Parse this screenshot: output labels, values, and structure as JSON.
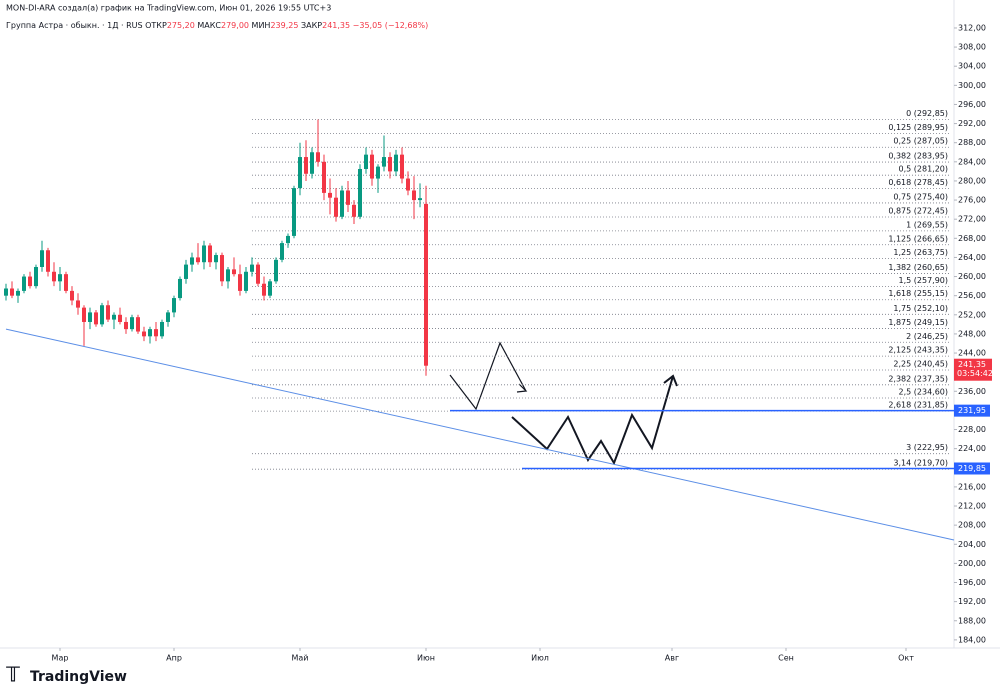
{
  "header": {
    "author_line": "MON-DI-ARA создал(а) график на TradingView.com, Июн 01, 2026 19:55 UTC+3",
    "symbol": "Группа Астра · обыкн. · 1Д · RUS",
    "ohlc": [
      {
        "label": "ОТКР",
        "value": "275,20"
      },
      {
        "label": "МАКС",
        "value": "279,00"
      },
      {
        "label": "МИН",
        "value": "239,25"
      },
      {
        "label": "ЗАКР",
        "value": "241,35"
      }
    ],
    "change": "−35,05 (−12,68%)"
  },
  "footer": {
    "logo": "TradingView"
  },
  "chart_data": {
    "type": "candlestick",
    "up_color": "#089981",
    "down_color": "#f23645",
    "xlim": [
      0,
      159
    ],
    "ylim": [
      182.3,
      317.85
    ],
    "xticks": [
      {
        "value": 10,
        "label": "Мар"
      },
      {
        "value": 29,
        "label": "Апр"
      },
      {
        "value": 50,
        "label": "Май"
      },
      {
        "value": 71,
        "label": "Июн"
      },
      {
        "value": 90,
        "label": "Июл"
      },
      {
        "value": 112,
        "label": "Авг"
      },
      {
        "value": 131,
        "label": "Сен"
      },
      {
        "value": 151,
        "label": "Окт"
      }
    ],
    "yticks": [
      {
        "value": 184,
        "label": "184,00"
      },
      {
        "value": 188,
        "label": "188,00"
      },
      {
        "value": 192,
        "label": "192,00"
      },
      {
        "value": 196,
        "label": "196,00"
      },
      {
        "value": 200,
        "label": "200,00"
      },
      {
        "value": 204,
        "label": "204,00"
      },
      {
        "value": 208,
        "label": "208,00"
      },
      {
        "value": 212,
        "label": "212,00"
      },
      {
        "value": 216,
        "label": "216,00"
      },
      {
        "value": 220,
        "label": "220,00"
      },
      {
        "value": 224,
        "label": "224,00"
      },
      {
        "value": 228,
        "label": "228,00"
      },
      {
        "value": 232,
        "label": "232,00"
      },
      {
        "value": 236,
        "label": "236,00"
      },
      {
        "value": 240,
        "label": "240,00"
      },
      {
        "value": 244,
        "label": "244,00"
      },
      {
        "value": 248,
        "label": "248,00"
      },
      {
        "value": 252,
        "label": "252,00"
      },
      {
        "value": 256,
        "label": "256,00"
      },
      {
        "value": 260,
        "label": "260,00"
      },
      {
        "value": 264,
        "label": "264,00"
      },
      {
        "value": 268,
        "label": "268,00"
      },
      {
        "value": 272,
        "label": "272,00"
      },
      {
        "value": 276,
        "label": "276,00"
      },
      {
        "value": 280,
        "label": "280,00"
      },
      {
        "value": 284,
        "label": "284,00"
      },
      {
        "value": 288,
        "label": "288,00"
      },
      {
        "value": 292,
        "label": "292,00"
      },
      {
        "value": 296,
        "label": "296,00"
      },
      {
        "value": 300,
        "label": "300,00"
      },
      {
        "value": 304,
        "label": "304,00"
      },
      {
        "value": 308,
        "label": "308,00"
      },
      {
        "value": 312,
        "label": "312,00"
      }
    ],
    "x": [
      1,
      2,
      3,
      4,
      5,
      6,
      7,
      8,
      9,
      10,
      11,
      12,
      13,
      14,
      15,
      16,
      17,
      18,
      19,
      20,
      21,
      22,
      23,
      24,
      25,
      26,
      27,
      28,
      29,
      30,
      31,
      32,
      33,
      34,
      35,
      36,
      37,
      38,
      39,
      40,
      41,
      42,
      43,
      44,
      45,
      46,
      47,
      48,
      49,
      50,
      51,
      52,
      53,
      54,
      55,
      56,
      57,
      58,
      59,
      60,
      61,
      62,
      63,
      64,
      65,
      66,
      67,
      68,
      69,
      70,
      71
    ],
    "open": [
      256.0,
      257.5,
      256.0,
      257.0,
      260.0,
      258.0,
      262.0,
      265.5,
      261.0,
      259.0,
      260.5,
      257.0,
      255.0,
      253.5,
      250.5,
      252.5,
      250.0,
      254.0,
      251.0,
      252.0,
      250.5,
      249.0,
      251.5,
      248.5,
      247.5,
      249.0,
      247.5,
      250.5,
      252.5,
      255.5,
      259.5,
      262.5,
      264.0,
      263.0,
      266.5,
      263.0,
      264.5,
      259.0,
      261.5,
      260.5,
      257.0,
      261.0,
      262.5,
      258.5,
      256.0,
      259.0,
      263.5,
      267.0,
      268.5,
      278.5,
      285.0,
      281.5,
      286.0,
      284.0,
      277.5,
      276.5,
      272.5,
      278.0,
      275.0,
      272.5,
      282.5,
      285.5,
      280.5,
      283.0,
      285.0,
      282.0,
      285.5,
      280.5,
      278.0,
      276.0,
      275.2
    ],
    "high": [
      258.5,
      259.0,
      257.5,
      260.5,
      261.0,
      262.5,
      267.5,
      266.0,
      263.0,
      262.0,
      261.0,
      258.0,
      256.5,
      254.0,
      253.5,
      253.0,
      254.5,
      255.0,
      252.5,
      253.5,
      251.5,
      252.0,
      252.0,
      249.5,
      249.5,
      250.5,
      251.0,
      253.0,
      256.0,
      260.0,
      263.5,
      265.0,
      267.0,
      267.5,
      267.0,
      265.0,
      265.0,
      262.0,
      264.0,
      262.5,
      262.0,
      264.0,
      263.0,
      260.0,
      259.5,
      264.0,
      267.5,
      269.0,
      279.0,
      288.0,
      288.5,
      287.0,
      292.85,
      285.5,
      280.5,
      278.5,
      279.0,
      280.0,
      276.0,
      283.5,
      287.0,
      286.5,
      283.5,
      289.5,
      286.0,
      286.5,
      287.0,
      282.0,
      281.0,
      279.5,
      279.0
    ],
    "low": [
      255.0,
      255.5,
      254.5,
      256.5,
      257.5,
      257.5,
      261.0,
      260.0,
      258.0,
      257.0,
      256.5,
      254.0,
      252.0,
      245.5,
      249.0,
      249.5,
      249.5,
      250.5,
      249.0,
      250.0,
      248.0,
      248.5,
      248.0,
      246.5,
      246.0,
      246.5,
      247.0,
      249.5,
      251.5,
      255.0,
      258.5,
      261.0,
      262.5,
      261.5,
      262.0,
      261.5,
      258.0,
      257.5,
      260.0,
      256.0,
      256.5,
      260.0,
      258.0,
      255.0,
      255.5,
      258.5,
      263.0,
      266.0,
      268.0,
      277.0,
      280.0,
      280.5,
      283.0,
      276.0,
      273.0,
      271.5,
      272.0,
      273.5,
      271.0,
      272.0,
      281.5,
      279.0,
      277.5,
      282.0,
      280.5,
      281.0,
      279.5,
      277.0,
      272.0,
      274.5,
      239.25
    ],
    "close": [
      257.5,
      256.0,
      257.0,
      260.0,
      258.0,
      262.0,
      265.5,
      261.0,
      259.0,
      260.5,
      257.0,
      255.0,
      253.5,
      250.5,
      252.5,
      250.0,
      254.0,
      251.0,
      252.0,
      250.5,
      249.0,
      251.5,
      248.5,
      247.5,
      249.0,
      247.5,
      250.5,
      252.5,
      255.5,
      259.5,
      262.5,
      264.0,
      263.0,
      266.5,
      263.0,
      264.5,
      259.0,
      261.5,
      260.5,
      257.0,
      261.0,
      262.5,
      258.5,
      256.0,
      259.0,
      263.5,
      267.0,
      268.5,
      278.5,
      285.0,
      281.5,
      286.0,
      284.0,
      277.5,
      276.5,
      272.5,
      278.0,
      275.0,
      272.5,
      282.5,
      285.5,
      280.5,
      283.0,
      285.0,
      282.0,
      285.5,
      280.5,
      278.0,
      276.0,
      276.4,
      241.35
    ],
    "fib_start_x": 42,
    "fib_levels": [
      {
        "label": "0 (292,85)",
        "value": 292.85
      },
      {
        "label": "0,125 (289,95)",
        "value": 289.95
      },
      {
        "label": "0,25 (287,05)",
        "value": 287.05
      },
      {
        "label": "0,382 (283,95)",
        "value": 283.95
      },
      {
        "label": "0,5 (281,20)",
        "value": 281.2
      },
      {
        "label": "0,618 (278,45)",
        "value": 278.45
      },
      {
        "label": "0,75 (275,40)",
        "value": 275.4
      },
      {
        "label": "0,875 (272,45)",
        "value": 272.45
      },
      {
        "label": "1 (269,55)",
        "value": 269.55
      },
      {
        "label": "1,125 (266,65)",
        "value": 266.65
      },
      {
        "label": "1,25 (263,75)",
        "value": 263.75
      },
      {
        "label": "1,382 (260,65)",
        "value": 260.65
      },
      {
        "label": "1,5 (257,90)",
        "value": 257.9
      },
      {
        "label": "1,618 (255,15)",
        "value": 255.15
      },
      {
        "label": "1,75 (252,10)",
        "value": 252.1
      },
      {
        "label": "1,875 (249,15)",
        "value": 249.15
      },
      {
        "label": "2 (246,25)",
        "value": 246.25
      },
      {
        "label": "2,125 (243,35)",
        "value": 243.35
      },
      {
        "label": "2,25 (240,45)",
        "value": 240.45
      },
      {
        "label": "2,382 (237,35)",
        "value": 237.35
      },
      {
        "label": "2,5 (234,60)",
        "value": 234.6
      },
      {
        "label": "2,618 (231,85)",
        "value": 231.85
      },
      {
        "label": "3 (222,95)",
        "value": 222.95
      },
      {
        "label": "3,14 (219,70)",
        "value": 219.7
      }
    ],
    "trendline": {
      "x": [
        1,
        159
      ],
      "values": [
        249.0,
        204.9
      ],
      "color": "#5b8ee6"
    },
    "hlines": [
      {
        "x": 75,
        "value": 231.95,
        "label": "231,95"
      },
      {
        "x": 87,
        "value": 219.85,
        "label": "219,85"
      }
    ],
    "hline_color": "#2962ff",
    "last_price": {
      "value": 241.35,
      "label": "241,35",
      "countdown": "03:54:42"
    }
  }
}
